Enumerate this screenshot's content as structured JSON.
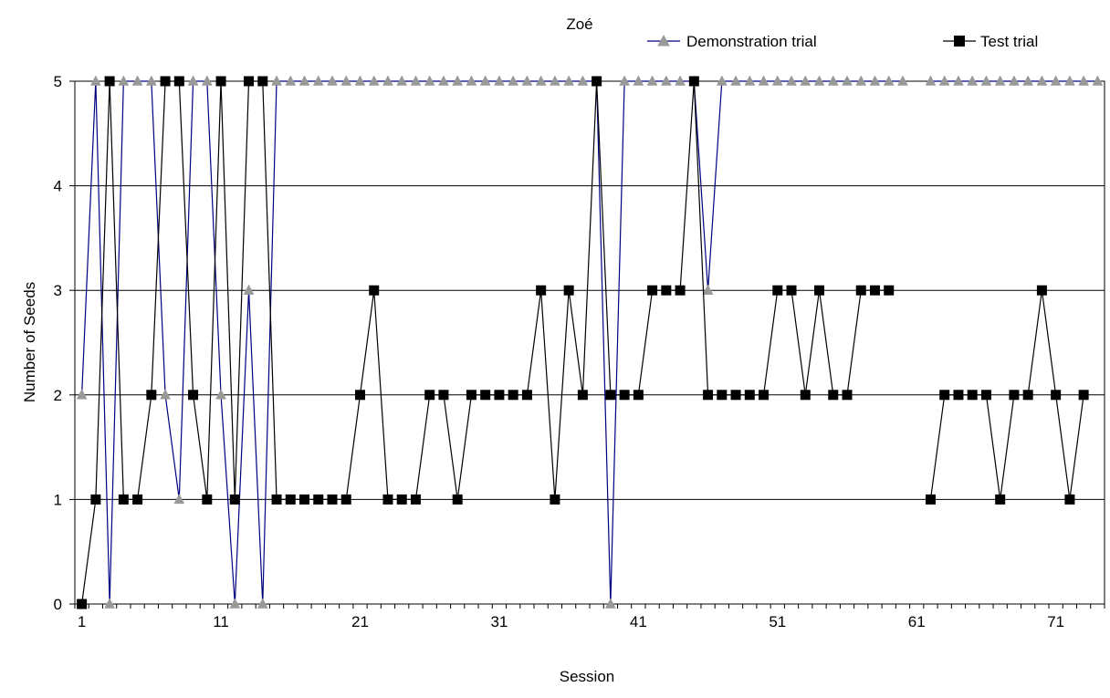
{
  "chart_data": {
    "type": "line",
    "title": "Zoé",
    "xlabel": "Session",
    "ylabel": "Number of Seeds",
    "xlim": [
      1,
      74
    ],
    "ylim": [
      0,
      5
    ],
    "x_ticks": [
      "1",
      "11",
      "21",
      "31",
      "41",
      "51",
      "61",
      "71"
    ],
    "y_ticks": [
      "0",
      "1",
      "2",
      "3",
      "4",
      "5"
    ],
    "grid": "horizontal",
    "legend_position": "top-right",
    "series": [
      {
        "name": "Demonstration trial",
        "color": "#000080",
        "marker_color": "#999999",
        "marker": "triangle",
        "x": [
          1,
          2,
          3,
          4,
          5,
          6,
          7,
          8,
          9,
          10,
          11,
          12,
          13,
          14,
          15,
          16,
          17,
          18,
          19,
          20,
          21,
          22,
          23,
          24,
          25,
          26,
          27,
          28,
          29,
          30,
          31,
          32,
          33,
          34,
          35,
          36,
          37,
          38,
          39,
          40,
          41,
          42,
          43,
          44,
          45,
          46,
          47,
          48,
          49,
          50,
          51,
          52,
          53,
          54,
          55,
          56,
          57,
          58,
          59,
          60,
          61,
          62,
          63,
          64,
          65,
          66,
          67,
          68,
          69,
          70,
          71,
          72,
          73,
          74
        ],
        "y": [
          2,
          5,
          0,
          5,
          5,
          5,
          2,
          1,
          5,
          5,
          2,
          0,
          3,
          0,
          5,
          5,
          5,
          5,
          5,
          5,
          5,
          5,
          5,
          5,
          5,
          5,
          5,
          5,
          5,
          5,
          5,
          5,
          5,
          5,
          5,
          5,
          5,
          5,
          0,
          5,
          5,
          5,
          5,
          5,
          5,
          3,
          5,
          5,
          5,
          5,
          5,
          5,
          5,
          5,
          5,
          5,
          5,
          5,
          5,
          5,
          null,
          5,
          5,
          5,
          5,
          5,
          5,
          5,
          5,
          5,
          5,
          5,
          5,
          5
        ]
      },
      {
        "name": "Test trial",
        "color": "#000000",
        "marker_color": "#000000",
        "marker": "square",
        "x": [
          1,
          2,
          3,
          4,
          5,
          6,
          7,
          8,
          9,
          10,
          11,
          12,
          13,
          14,
          15,
          16,
          17,
          18,
          19,
          20,
          21,
          22,
          23,
          24,
          25,
          26,
          27,
          28,
          29,
          30,
          31,
          32,
          33,
          34,
          35,
          36,
          37,
          38,
          39,
          40,
          41,
          42,
          43,
          44,
          45,
          46,
          47,
          48,
          49,
          50,
          51,
          52,
          53,
          54,
          55,
          56,
          57,
          58,
          59,
          60,
          61,
          62,
          63,
          64,
          65,
          66,
          67,
          68,
          69,
          70,
          71,
          72,
          73,
          74
        ],
        "y": [
          0,
          1,
          5,
          1,
          1,
          2,
          5,
          5,
          2,
          1,
          5,
          1,
          5,
          5,
          1,
          1,
          1,
          1,
          1,
          1,
          2,
          3,
          1,
          1,
          1,
          2,
          2,
          1,
          2,
          2,
          2,
          2,
          2,
          3,
          1,
          3,
          2,
          5,
          2,
          2,
          2,
          3,
          3,
          3,
          5,
          2,
          2,
          2,
          2,
          2,
          3,
          3,
          2,
          3,
          2,
          2,
          3,
          3,
          3,
          null,
          null,
          1,
          2,
          2,
          2,
          2,
          1,
          2,
          2,
          3,
          2,
          1,
          2,
          null
        ]
      }
    ]
  }
}
